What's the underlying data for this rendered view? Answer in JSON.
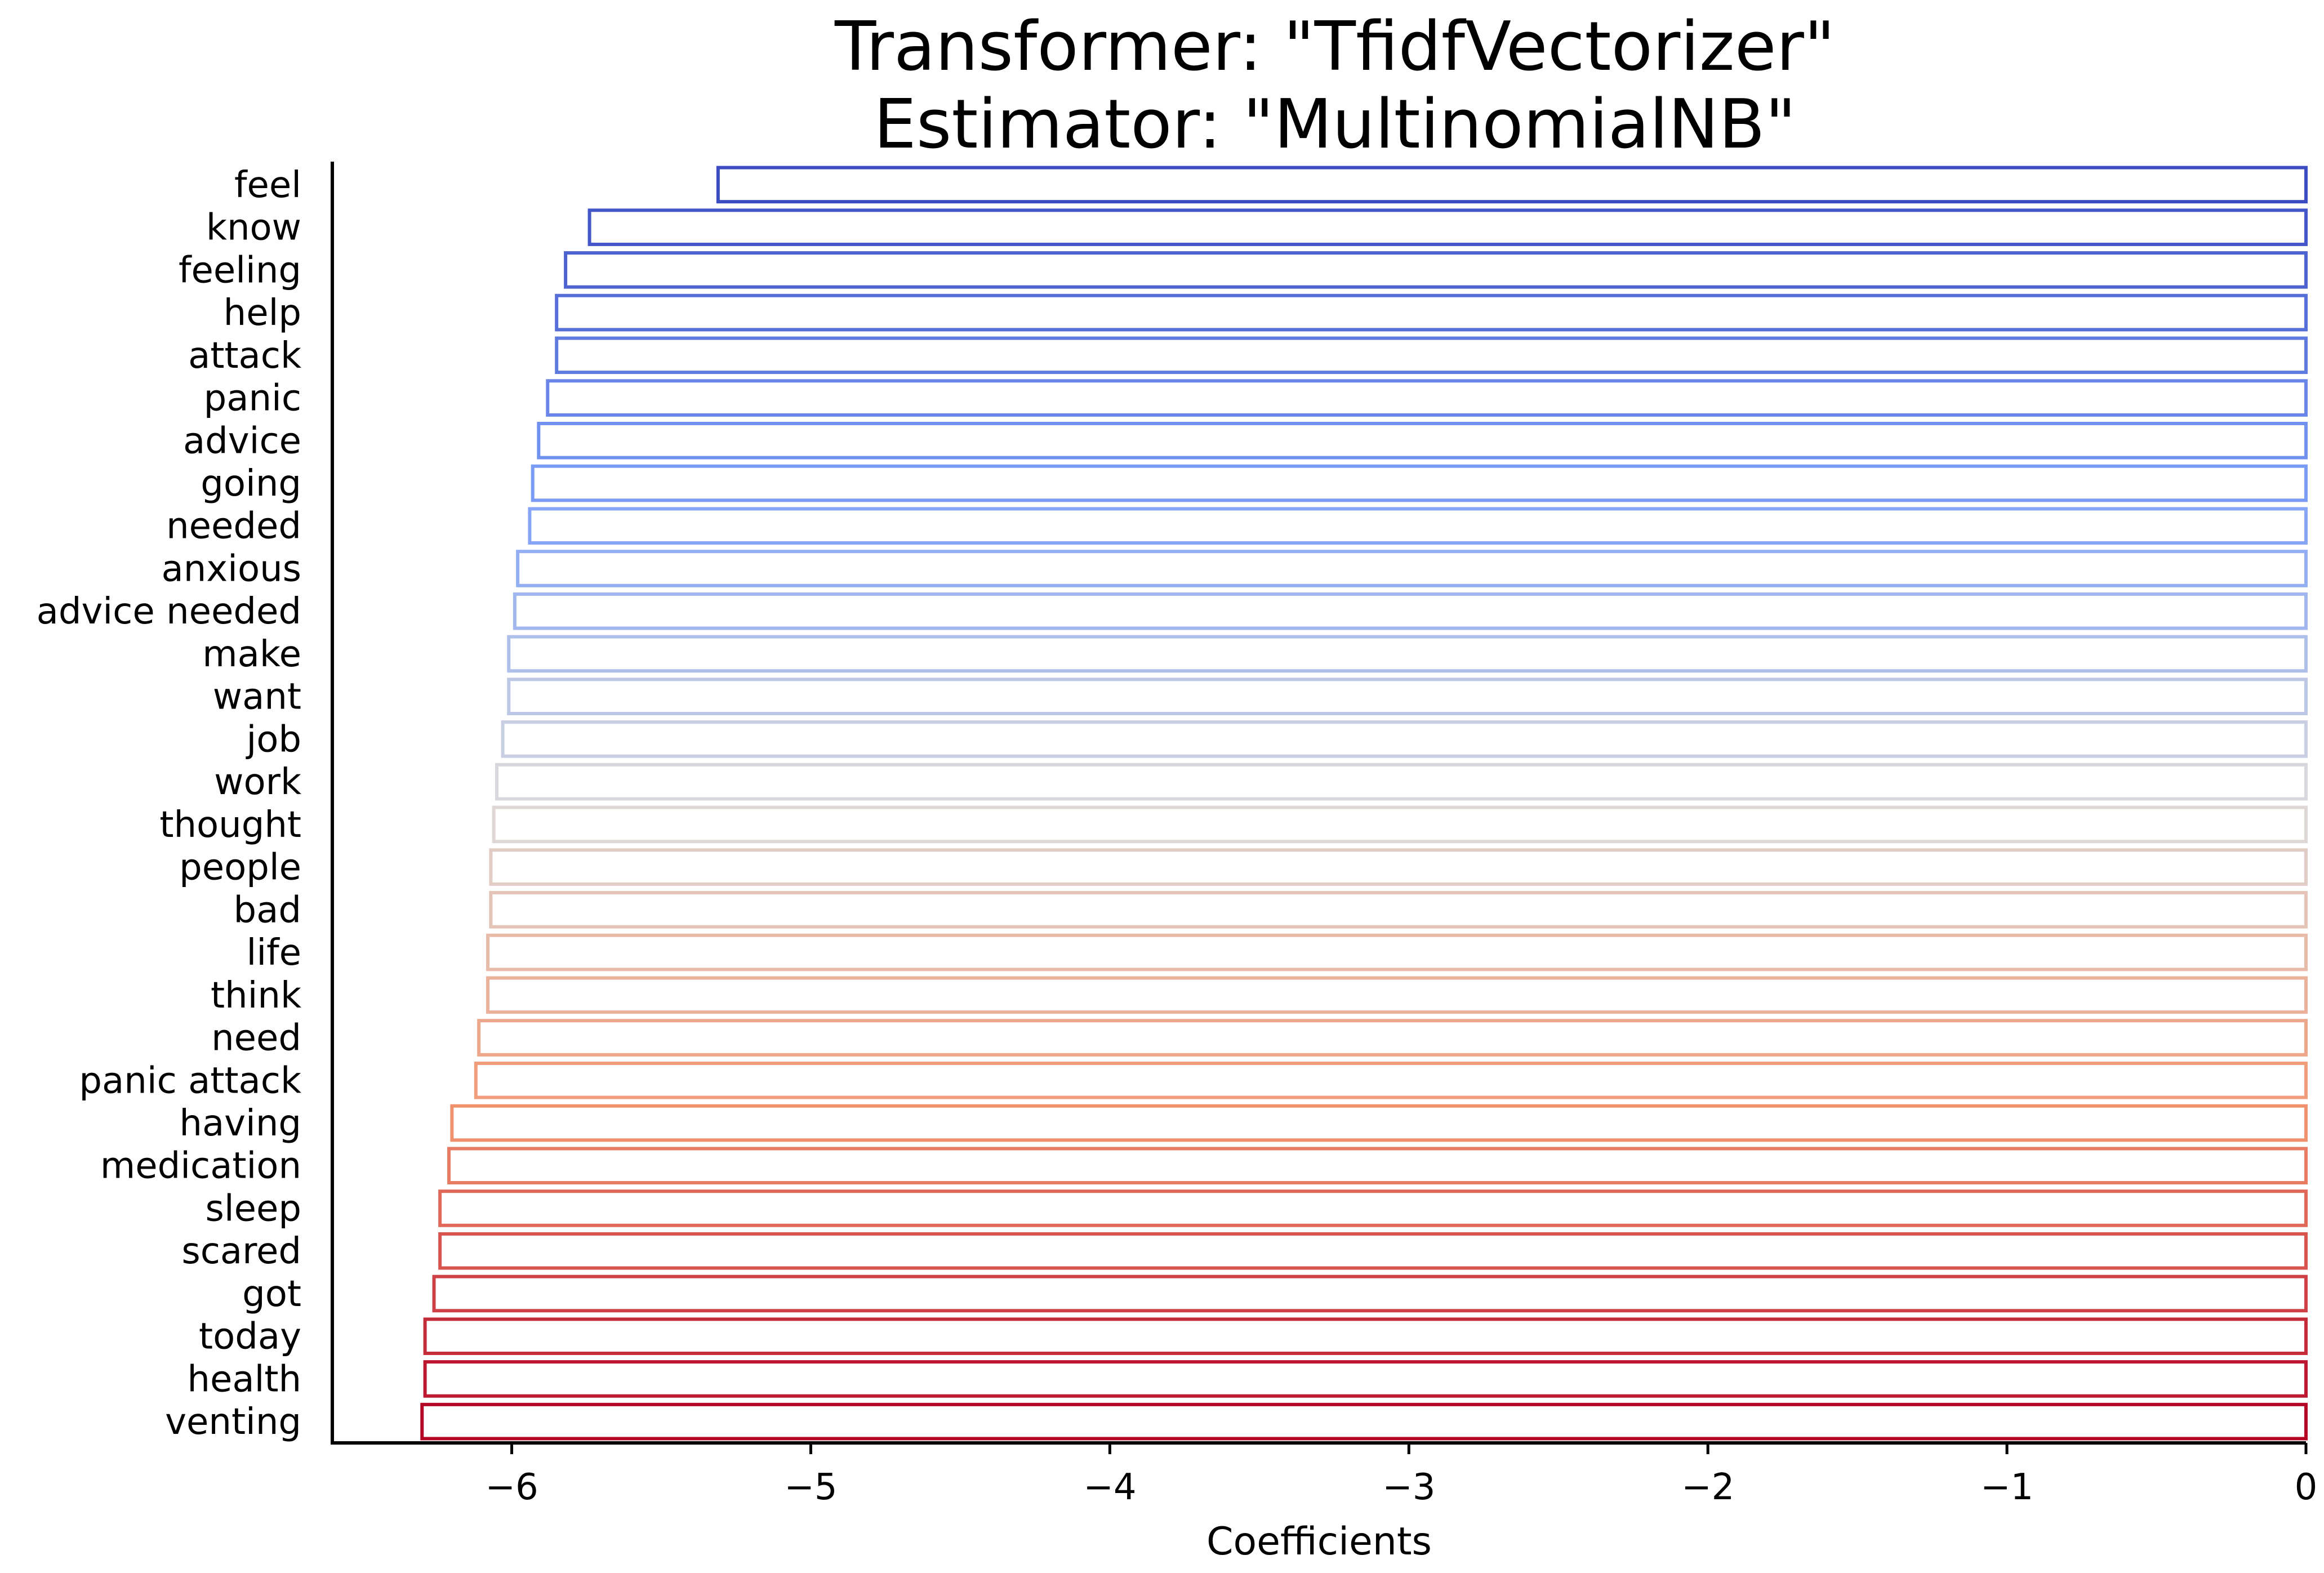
{
  "chart_data": {
    "type": "bar",
    "orientation": "horizontal",
    "title": [
      "Transformer: \"TfidfVectorizer\"",
      "Estimator: \"MultinomialNB\""
    ],
    "xlabel": "Coefficients",
    "ylabel": "",
    "xlim": [
      -6.6,
      0
    ],
    "xticks": [
      -6,
      -5,
      -4,
      -3,
      -2,
      -1,
      0
    ],
    "xtick_labels": [
      "−6",
      "−5",
      "−4",
      "−3",
      "−2",
      "−1",
      "0"
    ],
    "grid": false,
    "legend": "none",
    "color_map": "coolwarm (blue at top to red at bottom)",
    "bar_style": "outline",
    "categories": [
      "feel",
      "know",
      "feeling",
      "help",
      "attack",
      "panic",
      "advice",
      "going",
      "needed",
      "anxious",
      "advice needed",
      "make",
      "want",
      "job",
      "work",
      "thought",
      "people",
      "bad",
      "life",
      "think",
      "need",
      "panic attack",
      "having",
      "medication",
      "sleep",
      "scared",
      "got",
      "today",
      "health",
      "venting"
    ],
    "values": [
      -5.31,
      -5.74,
      -5.82,
      -5.85,
      -5.85,
      -5.88,
      -5.91,
      -5.93,
      -5.94,
      -5.98,
      -5.99,
      -6.01,
      -6.01,
      -6.03,
      -6.05,
      -6.06,
      -6.07,
      -6.07,
      -6.08,
      -6.08,
      -6.11,
      -6.12,
      -6.2,
      -6.21,
      -6.24,
      -6.24,
      -6.26,
      -6.29,
      -6.29,
      -6.3
    ]
  }
}
